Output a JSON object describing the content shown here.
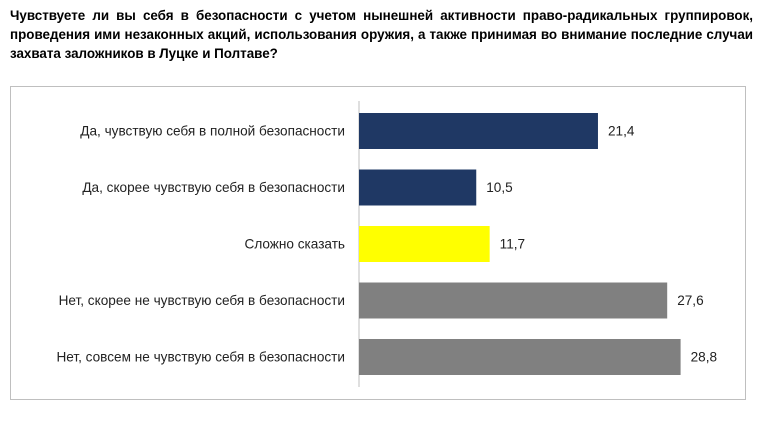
{
  "question": "Чувствуете ли вы себя в безопасности с учетом нынешней активности право-радикальных группировок, проведения ими незаконных акций, использования оружия, а также принимая во внимание последние случаи захвата заложников в Луцке и Полтаве?",
  "chart_data": {
    "type": "bar",
    "orientation": "horizontal",
    "title": "",
    "xlabel": "",
    "ylabel": "",
    "grid": false,
    "legend": "none",
    "xlim": [
      0,
      30
    ],
    "categories": [
      "Да, чувствую себя в полной безопасности",
      "Да, скорее чувствую себя в безопасности",
      "Сложно сказать",
      "Нет, скорее не чувствую себя в безопасности",
      "Нет, совсем не чувствую себя в безопасности"
    ],
    "values": [
      21.4,
      10.5,
      11.7,
      27.6,
      28.8
    ],
    "value_labels": [
      "21,4",
      "10,5",
      "11,7",
      "27,6",
      "28,8"
    ],
    "colors": [
      "#1f3864",
      "#1f3864",
      "#ffff00",
      "#808080",
      "#808080"
    ]
  }
}
